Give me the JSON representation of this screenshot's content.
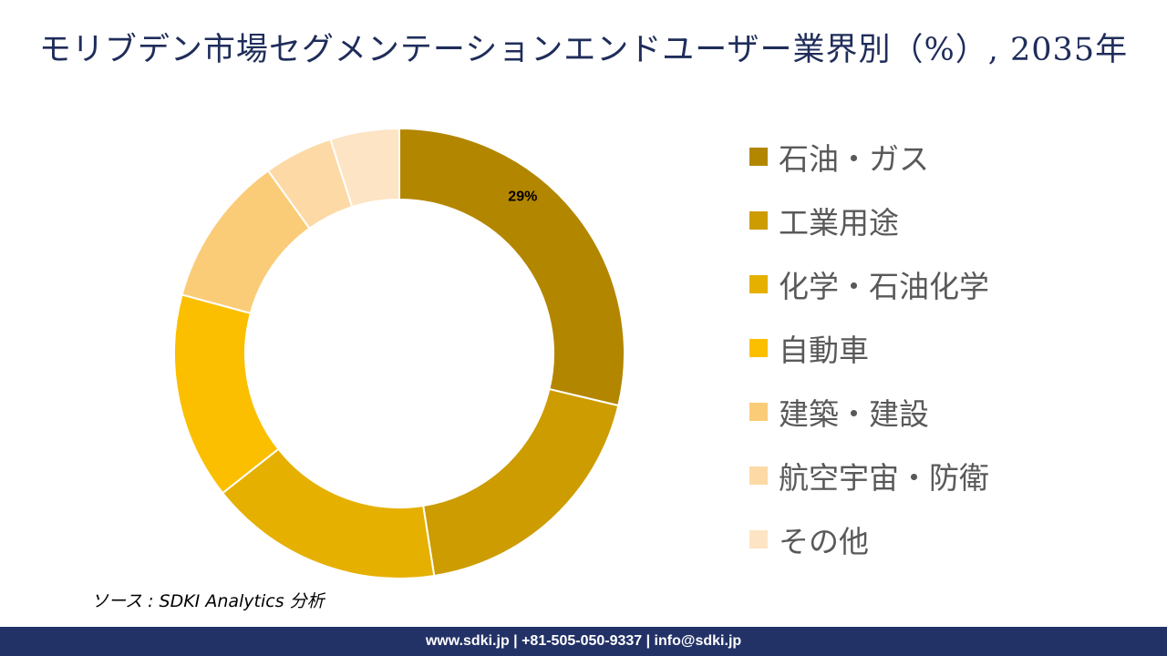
{
  "title": "モリブデン市場セグメンテーションエンドユーザー業界別（%）, 2035年",
  "chart_data": {
    "type": "donut",
    "categories": [
      "石油・ガス",
      "工業用途",
      "化学・石油化学",
      "自動車",
      "建築・建設",
      "航空宇宙・防衛",
      "その他"
    ],
    "values": [
      29,
      19,
      17,
      15,
      11,
      5,
      5
    ],
    "data_labels": [
      "29%",
      "",
      "",
      "",
      "",
      "",
      ""
    ],
    "colors": [
      "#b38600",
      "#cc9c00",
      "#e6b000",
      "#fbbf00",
      "#fbcc78",
      "#fdd9a6",
      "#fde4c4"
    ],
    "legend_position": "right"
  },
  "source": "ソース : SDKI Analytics  分析",
  "footer": "www.sdki.jp | +81-505-050-9337 | info@sdki.jp"
}
